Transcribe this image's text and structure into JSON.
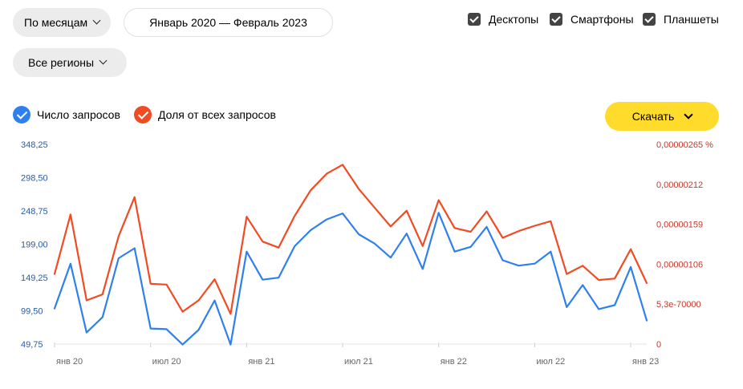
{
  "controls": {
    "period_label": "По месяцам",
    "date_range": "Январь 2020 — Февраль 2023",
    "region_label": "Все регионы",
    "devices": [
      {
        "label": "Десктопы",
        "checked": true
      },
      {
        "label": "Смартфоны",
        "checked": true
      },
      {
        "label": "Планшеты",
        "checked": true
      }
    ],
    "download_label": "Скачать"
  },
  "legend": {
    "requests_label": "Число запросов",
    "share_label": "Доля от всех запросов",
    "requests_color": "#2f80ed",
    "share_color": "#f04b23"
  },
  "chart_data": {
    "type": "line",
    "x": [
      "2020-01",
      "2020-02",
      "2020-03",
      "2020-04",
      "2020-05",
      "2020-06",
      "2020-07",
      "2020-08",
      "2020-09",
      "2020-10",
      "2020-11",
      "2020-12",
      "2021-01",
      "2021-02",
      "2021-03",
      "2021-04",
      "2021-05",
      "2021-06",
      "2021-07",
      "2021-08",
      "2021-09",
      "2021-10",
      "2021-11",
      "2021-12",
      "2022-01",
      "2022-02",
      "2022-03",
      "2022-04",
      "2022-05",
      "2022-06",
      "2022-07",
      "2022-08",
      "2022-09",
      "2022-10",
      "2022-11",
      "2022-12",
      "2023-01",
      "2023-02"
    ],
    "x_tick_labels": [
      {
        "index": 0,
        "label": "янв 20"
      },
      {
        "index": 6,
        "label": "июл 20"
      },
      {
        "index": 12,
        "label": "янв 21"
      },
      {
        "index": 18,
        "label": "июл 21"
      },
      {
        "index": 24,
        "label": "янв 22"
      },
      {
        "index": 30,
        "label": "июл 22"
      },
      {
        "index": 36,
        "label": "янв 23"
      }
    ],
    "left_axis": {
      "ticks": [
        49.75,
        99.5,
        149.25,
        199,
        248.75,
        298.5,
        348.25
      ],
      "tick_labels": [
        "49,75",
        "99,50",
        "149,25",
        "199,00",
        "248,75",
        "298,50",
        "348,25"
      ],
      "color": "#2c5aa0"
    },
    "right_axis": {
      "tick_labels": [
        "0",
        "5,3e-70000",
        "0,00000106",
        "0,00000159",
        "0,00000212",
        "0,00000265 %"
      ],
      "color": "#c0392b"
    },
    "series": [
      {
        "name": "Число запросов",
        "axis": "left",
        "color": "#2f80ed",
        "values": [
          103,
          170,
          67,
          90,
          178,
          193,
          73,
          72,
          49,
          71,
          115,
          49,
          188,
          146,
          149,
          196,
          220,
          236,
          245,
          214,
          200,
          179,
          215,
          162,
          246,
          188,
          195,
          225,
          175,
          167,
          170,
          188,
          105,
          138,
          102,
          108,
          165,
          85
        ]
      },
      {
        "name": "Доля от всех запросов",
        "axis": "right",
        "color": "#f04b23",
        "values": [
          9.3e-07,
          1.72e-06,
          5.8e-07,
          6.6e-07,
          1.43e-06,
          1.95e-06,
          8e-07,
          7.9e-07,
          4.3e-07,
          5.8e-07,
          8.6e-07,
          4e-07,
          1.69e-06,
          1.36e-06,
          1.28e-06,
          1.7e-06,
          2.04e-06,
          2.26e-06,
          2.38e-06,
          2.06e-06,
          1.81e-06,
          1.56e-06,
          1.77e-06,
          1.3e-06,
          1.91e-06,
          1.54e-06,
          1.49e-06,
          1.76e-06,
          1.41e-06,
          1.5e-06,
          1.57e-06,
          1.63e-06,
          9.3e-07,
          1.04e-06,
          8.5e-07,
          8.7e-07,
          1.26e-06,
          8.1e-07
        ]
      }
    ]
  }
}
